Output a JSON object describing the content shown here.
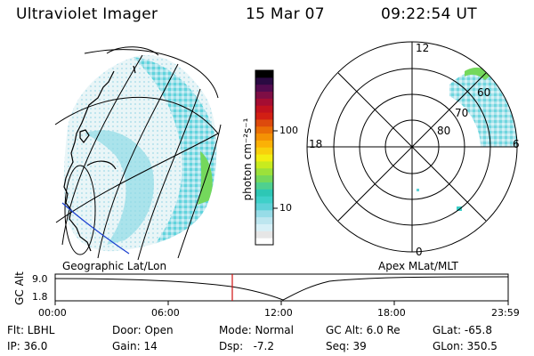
{
  "header": {
    "title": "Ultraviolet Imager",
    "date": "15 Mar 07",
    "time": "09:22:54 UT"
  },
  "left_panel": {
    "caption": "Geographic Lat/Lon"
  },
  "colorbar": {
    "unit_label": "photon cm⁻²s⁻¹",
    "ticks": [
      "100",
      "10"
    ],
    "colors": [
      "#ffffff",
      "#e6e6e6",
      "#d7f0f7",
      "#bde6ef",
      "#97dce7",
      "#5fd2d8",
      "#3ed0c9",
      "#2dc7b5",
      "#4fd08f",
      "#74d85c",
      "#9ce13a",
      "#c8eb1f",
      "#f2ee12",
      "#f8d00c",
      "#fbb106",
      "#f49204",
      "#ea6f06",
      "#dd4a0d",
      "#d21f14",
      "#c2121e",
      "#a50d32",
      "#7e0e45",
      "#530b4f",
      "#2a0a42",
      "#000000"
    ]
  },
  "right_panel": {
    "caption": "Apex MLat/MLT",
    "mlt_labels": {
      "top": "12",
      "left": "18",
      "right": "6",
      "bottom": "0"
    },
    "lat_labels": [
      "60",
      "70",
      "80"
    ]
  },
  "gc_plot": {
    "ylabel": "GC Alt",
    "yticks": [
      "9.0",
      "1.8"
    ],
    "xticks": [
      "00:00",
      "06:00",
      "12:00",
      "18:00",
      "23:59"
    ],
    "current_time_fraction": 0.3909
  },
  "status": {
    "col1": [
      "Flt: LBHL",
      "IP: 36.0"
    ],
    "col2": [
      "Door: Open",
      "Gain: 14"
    ],
    "col3": [
      "Mode: Normal",
      "Dsp:   -7.2"
    ],
    "col4": [
      "GC Alt: 6.0 Re",
      "Seq: 39"
    ],
    "col5": [
      "GLat: -65.8",
      "GLon: 350.5"
    ]
  }
}
